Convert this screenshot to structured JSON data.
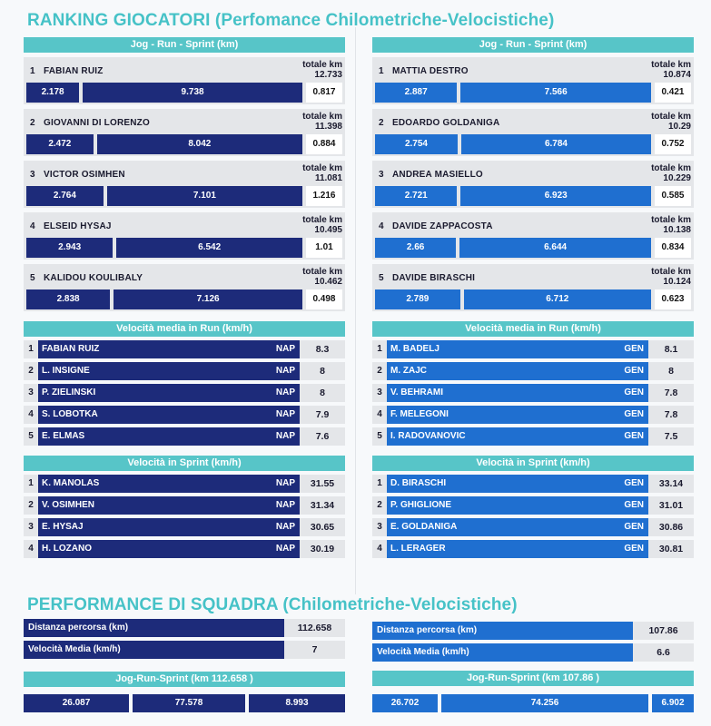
{
  "title": "RANKING GIOCATORI (Perfomance Chilometriche-Velocistiche)",
  "team_title": "PERFORMANCE DI SQUADRA (Chilometriche-Velocistiche)",
  "km_header": "Jog  -  Run  -  Sprint    (km)",
  "total_label": "totale km",
  "run_header": "Velocità media in Run       (km/h)",
  "sprint_header": "Velocità in Sprint       (km/h)",
  "left_km": [
    {
      "rank": "1",
      "name": "FABIAN RUIZ",
      "total": "12.733",
      "jog": "2.178",
      "run": "9.738",
      "sprint": "0.817"
    },
    {
      "rank": "2",
      "name": "GIOVANNI DI LORENZO",
      "total": "11.398",
      "jog": "2.472",
      "run": "8.042",
      "sprint": "0.884"
    },
    {
      "rank": "3",
      "name": "VICTOR OSIMHEN",
      "total": "11.081",
      "jog": "2.764",
      "run": "7.101",
      "sprint": "1.216"
    },
    {
      "rank": "4",
      "name": "ELSEID HYSAJ",
      "total": "10.495",
      "jog": "2.943",
      "run": "6.542",
      "sprint": "1.01"
    },
    {
      "rank": "5",
      "name": "KALIDOU KOULIBALY",
      "total": "10.462",
      "jog": "2.838",
      "run": "7.126",
      "sprint": "0.498"
    }
  ],
  "right_km": [
    {
      "rank": "1",
      "name": "MATTIA DESTRO",
      "total": "10.874",
      "jog": "2.887",
      "run": "7.566",
      "sprint": "0.421"
    },
    {
      "rank": "2",
      "name": "EDOARDO GOLDANIGA",
      "total": "10.29",
      "jog": "2.754",
      "run": "6.784",
      "sprint": "0.752"
    },
    {
      "rank": "3",
      "name": "ANDREA MASIELLO",
      "total": "10.229",
      "jog": "2.721",
      "run": "6.923",
      "sprint": "0.585"
    },
    {
      "rank": "4",
      "name": "DAVIDE ZAPPACOSTA",
      "total": "10.138",
      "jog": "2.66",
      "run": "6.644",
      "sprint": "0.834"
    },
    {
      "rank": "5",
      "name": "DAVIDE BIRASCHI",
      "total": "10.124",
      "jog": "2.789",
      "run": "6.712",
      "sprint": "0.623"
    }
  ],
  "left_run": [
    {
      "rank": "1",
      "name": "FABIAN RUIZ",
      "team": "NAP",
      "value": "8.3"
    },
    {
      "rank": "2",
      "name": "L. INSIGNE",
      "team": "NAP",
      "value": "8"
    },
    {
      "rank": "3",
      "name": "P. ZIELINSKI",
      "team": "NAP",
      "value": "8"
    },
    {
      "rank": "4",
      "name": "S. LOBOTKA",
      "team": "NAP",
      "value": "7.9"
    },
    {
      "rank": "5",
      "name": "E. ELMAS",
      "team": "NAP",
      "value": "7.6"
    }
  ],
  "right_run": [
    {
      "rank": "1",
      "name": "M. BADELJ",
      "team": "GEN",
      "value": "8.1"
    },
    {
      "rank": "2",
      "name": "M. ZAJC",
      "team": "GEN",
      "value": "8"
    },
    {
      "rank": "3",
      "name": "V. BEHRAMI",
      "team": "GEN",
      "value": "7.8"
    },
    {
      "rank": "4",
      "name": "F. MELEGONI",
      "team": "GEN",
      "value": "7.8"
    },
    {
      "rank": "5",
      "name": "I. RADOVANOVIC",
      "team": "GEN",
      "value": "7.5"
    }
  ],
  "left_sprint": [
    {
      "rank": "1",
      "name": "K. MANOLAS",
      "team": "NAP",
      "value": "31.55"
    },
    {
      "rank": "2",
      "name": "V. OSIMHEN",
      "team": "NAP",
      "value": "31.34"
    },
    {
      "rank": "3",
      "name": "E. HYSAJ",
      "team": "NAP",
      "value": "30.65"
    },
    {
      "rank": "4",
      "name": "H. LOZANO",
      "team": "NAP",
      "value": "30.19"
    }
  ],
  "right_sprint": [
    {
      "rank": "1",
      "name": "D. BIRASCHI",
      "team": "GEN",
      "value": "33.14"
    },
    {
      "rank": "2",
      "name": "P. GHIGLIONE",
      "team": "GEN",
      "value": "31.01"
    },
    {
      "rank": "3",
      "name": "E. GOLDANIGA",
      "team": "GEN",
      "value": "30.86"
    },
    {
      "rank": "4",
      "name": "L. LERAGER",
      "team": "GEN",
      "value": "30.81"
    }
  ],
  "team_left": {
    "distance_label": "Distanza percorsa (km)",
    "distance": "112.658",
    "speed_label": "Velocità Media (km/h)",
    "speed": "7",
    "split_header": "Jog-Run-Sprint (km 112.658 )",
    "jog": "26.087",
    "run": "77.578",
    "sprint": "8.993"
  },
  "team_right": {
    "distance_label": "Distanza percorsa (km)",
    "distance": "107.86",
    "speed_label": "Velocità Media (km/h)",
    "speed": "6.6",
    "split_header": "Jog-Run-Sprint (km 107.86 )",
    "jog": "26.702",
    "run": "74.256",
    "sprint": "6.902"
  },
  "colors": {
    "teal": "#57c5c8",
    "nap_blue": "#1d2b7a",
    "gen_blue": "#1f6fd0",
    "title": "#46c2c7"
  }
}
